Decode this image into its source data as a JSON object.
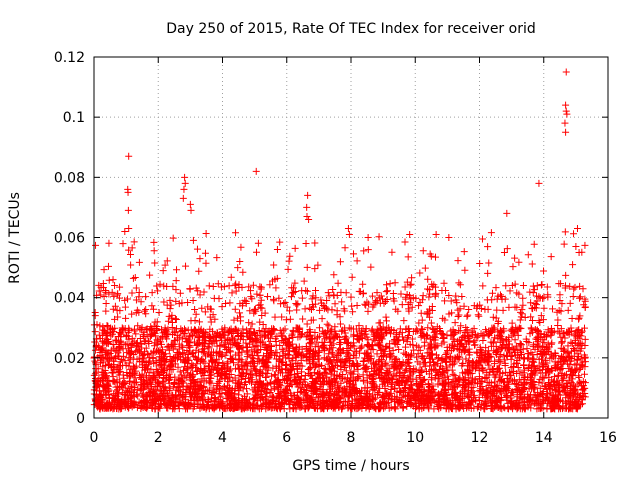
{
  "chart_data": {
    "type": "scatter",
    "title": "Day 250 of 2015, Rate Of TEC Index for receiver orid",
    "xlabel": "GPS time / hours",
    "ylabel": "ROTI / TECUs",
    "xlim": [
      0,
      16
    ],
    "ylim": [
      0,
      0.12
    ],
    "xticks": [
      0,
      2,
      4,
      6,
      8,
      10,
      12,
      14,
      16
    ],
    "yticks": [
      0,
      0.02,
      0.04,
      0.06,
      0.08,
      0.1,
      0.12
    ],
    "xtick_labels": [
      "0",
      "2",
      "4",
      "6",
      "8",
      "10",
      "12",
      "14",
      "16"
    ],
    "ytick_labels": [
      "0",
      "0.02",
      "0.04",
      "0.06",
      "0.08",
      "0.1",
      "0.12"
    ],
    "grid": true,
    "marker": "+",
    "series": [
      {
        "name": "ROTI",
        "color": "#ff0000",
        "x_range": [
          0,
          15.3
        ],
        "typical_range": [
          0.003,
          0.03
        ],
        "sample_count": 5000,
        "notable_points": [
          {
            "x": 1.08,
            "y": 0.087
          },
          {
            "x": 1.05,
            "y": 0.076
          },
          {
            "x": 1.06,
            "y": 0.075
          },
          {
            "x": 1.07,
            "y": 0.069
          },
          {
            "x": 1.08,
            "y": 0.063
          },
          {
            "x": 2.82,
            "y": 0.08
          },
          {
            "x": 2.84,
            "y": 0.078
          },
          {
            "x": 2.8,
            "y": 0.076
          },
          {
            "x": 2.78,
            "y": 0.073
          },
          {
            "x": 3.0,
            "y": 0.071
          },
          {
            "x": 3.02,
            "y": 0.069
          },
          {
            "x": 5.05,
            "y": 0.082
          },
          {
            "x": 6.65,
            "y": 0.074
          },
          {
            "x": 6.62,
            "y": 0.07
          },
          {
            "x": 6.63,
            "y": 0.067
          },
          {
            "x": 6.68,
            "y": 0.066
          },
          {
            "x": 6.6,
            "y": 0.058
          },
          {
            "x": 7.92,
            "y": 0.063
          },
          {
            "x": 7.95,
            "y": 0.061
          },
          {
            "x": 10.65,
            "y": 0.061
          },
          {
            "x": 12.85,
            "y": 0.068
          },
          {
            "x": 13.85,
            "y": 0.078
          },
          {
            "x": 14.7,
            "y": 0.115
          },
          {
            "x": 14.68,
            "y": 0.104
          },
          {
            "x": 14.7,
            "y": 0.102
          },
          {
            "x": 14.72,
            "y": 0.101
          },
          {
            "x": 14.66,
            "y": 0.098
          },
          {
            "x": 14.68,
            "y": 0.095
          },
          {
            "x": 15.05,
            "y": 0.063
          },
          {
            "x": 15.0,
            "y": 0.057
          },
          {
            "x": 15.1,
            "y": 0.055
          }
        ]
      }
    ]
  }
}
